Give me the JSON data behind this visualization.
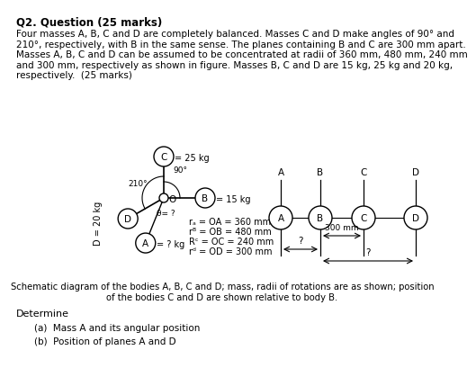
{
  "title": "Q2. Question (25 marks)",
  "body_line1": "Four masses A, B, C and D are completely balanced. Masses C and D make angles of 90° and",
  "body_line2": "210°, respectively, with B in the same sense. The planes containing B and C are 300 mm apart.",
  "body_line3": "Masses A, B, C and D can be assumed to be concentrated at radii of 360 mm, 480 mm, 240 mm",
  "body_line4": "and 300 mm, respectively as shown in figure. Masses B, C and D are 15 kg, 25 kg and 20 kg,",
  "body_line5": "respectively.  (25 marks)",
  "caption_line1": "Schematic diagram of the bodies A, B, C and D; mass, radii of rotations are as shown; position",
  "caption_line2": "of the bodies C and D are shown relative to body B.",
  "determine_label": "Determine",
  "part_a": "(a)  Mass A and its angular position",
  "part_b": "(b)  Position of planes A and D",
  "bg_color": "#ffffff",
  "mass_C_kg": "= 25 kg",
  "mass_B_kg": "= 15 kg",
  "mass_A_kg": "= ? kg",
  "mass_D_kg": "= 20 kg",
  "angle_90": "90°",
  "angle_210": "210°",
  "angle_theta": "θ= ?",
  "center_label": "O",
  "radii_line1": "rₐ = OA = 360 mm",
  "radii_line2": "rᴮ = OB = 480 mm",
  "radii_line3": "Rᶜ = OC = 240 mm",
  "radii_line4": "rᵈ = OD = 300 mm",
  "dist_300": "300 mm",
  "q_mark": "?",
  "plane_labels": [
    "A",
    "B",
    "C",
    "D"
  ],
  "D_rotated": "D = 20 kg"
}
